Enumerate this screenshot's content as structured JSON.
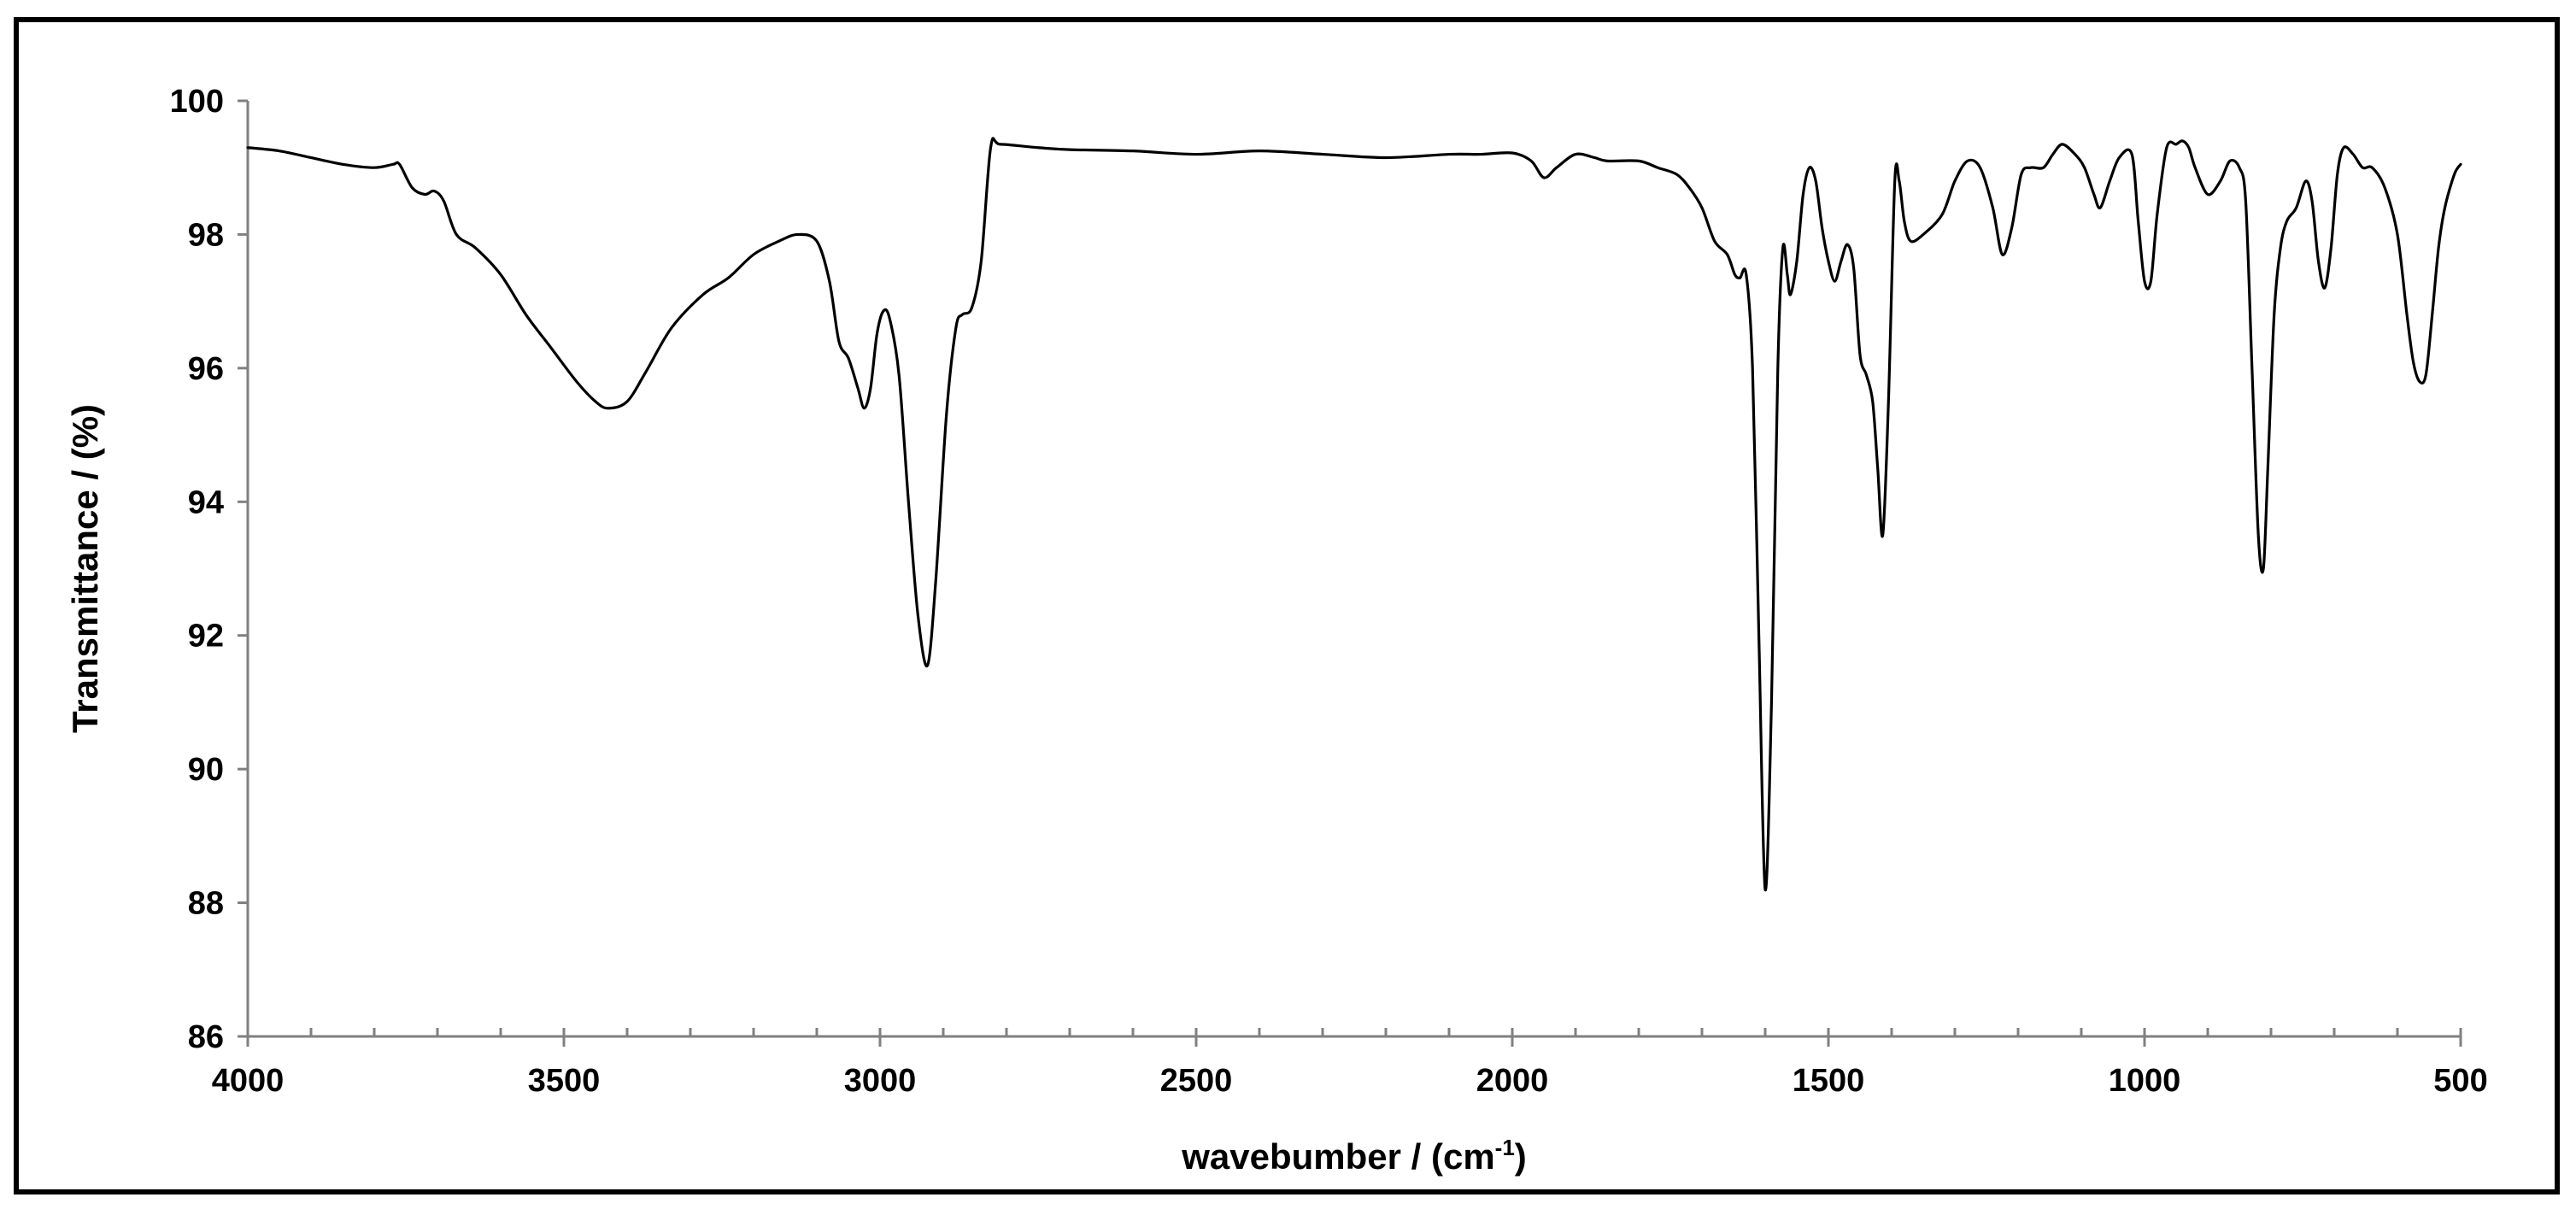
{
  "chart_data": {
    "type": "line",
    "title": "",
    "xlabel": "wavebumber / (cm",
    "xlabel_superscript": "-1",
    "xlabel_suffix": ")",
    "ylabel": "Transmittance / (%)",
    "xlim": [
      4000,
      500
    ],
    "ylim": [
      86,
      100
    ],
    "x_reversed": true,
    "x_ticks": [
      4000,
      3500,
      3000,
      2500,
      2000,
      1500,
      1000,
      500
    ],
    "x_tick_labels": [
      "4000",
      "3500",
      "3000",
      "2500",
      "2000",
      "1500",
      "1000",
      "500"
    ],
    "x_minor_step": 100,
    "y_ticks": [
      86,
      88,
      90,
      92,
      94,
      96,
      98,
      100
    ],
    "y_tick_labels": [
      "86",
      "88",
      "90",
      "92",
      "94",
      "96",
      "98",
      "100"
    ],
    "grid": false,
    "legend": "none",
    "line_color": "#000000",
    "axis_color": "#808080",
    "series": [
      {
        "points": [
          [
            4000,
            99.3
          ],
          [
            3950,
            99.25
          ],
          [
            3900,
            99.15
          ],
          [
            3850,
            99.05
          ],
          [
            3800,
            99.0
          ],
          [
            3770,
            99.05
          ],
          [
            3760,
            99.05
          ],
          [
            3740,
            98.7
          ],
          [
            3720,
            98.6
          ],
          [
            3705,
            98.65
          ],
          [
            3690,
            98.5
          ],
          [
            3670,
            98.0
          ],
          [
            3640,
            97.8
          ],
          [
            3600,
            97.4
          ],
          [
            3560,
            96.8
          ],
          [
            3520,
            96.3
          ],
          [
            3480,
            95.8
          ],
          [
            3450,
            95.5
          ],
          [
            3430,
            95.4
          ],
          [
            3400,
            95.5
          ],
          [
            3370,
            95.95
          ],
          [
            3330,
            96.6
          ],
          [
            3280,
            97.1
          ],
          [
            3240,
            97.35
          ],
          [
            3200,
            97.7
          ],
          [
            3160,
            97.9
          ],
          [
            3130,
            98.0
          ],
          [
            3100,
            97.9
          ],
          [
            3080,
            97.3
          ],
          [
            3065,
            96.4
          ],
          [
            3050,
            96.15
          ],
          [
            3035,
            95.7
          ],
          [
            3025,
            95.4
          ],
          [
            3015,
            95.7
          ],
          [
            3005,
            96.5
          ],
          [
            2995,
            96.85
          ],
          [
            2985,
            96.75
          ],
          [
            2970,
            95.9
          ],
          [
            2955,
            94.0
          ],
          [
            2940,
            92.3
          ],
          [
            2925,
            91.55
          ],
          [
            2912,
            92.8
          ],
          [
            2895,
            95.3
          ],
          [
            2880,
            96.6
          ],
          [
            2870,
            96.8
          ],
          [
            2855,
            96.9
          ],
          [
            2840,
            97.6
          ],
          [
            2825,
            99.3
          ],
          [
            2810,
            99.35
          ],
          [
            2750,
            99.3
          ],
          [
            2700,
            99.27
          ],
          [
            2600,
            99.25
          ],
          [
            2500,
            99.2
          ],
          [
            2400,
            99.25
          ],
          [
            2300,
            99.2
          ],
          [
            2200,
            99.15
          ],
          [
            2100,
            99.2
          ],
          [
            2050,
            99.2
          ],
          [
            2000,
            99.22
          ],
          [
            1970,
            99.1
          ],
          [
            1950,
            98.85
          ],
          [
            1930,
            99.0
          ],
          [
            1900,
            99.2
          ],
          [
            1870,
            99.15
          ],
          [
            1850,
            99.1
          ],
          [
            1800,
            99.1
          ],
          [
            1770,
            99.0
          ],
          [
            1740,
            98.9
          ],
          [
            1720,
            98.7
          ],
          [
            1700,
            98.4
          ],
          [
            1680,
            97.9
          ],
          [
            1660,
            97.7
          ],
          [
            1648,
            97.4
          ],
          [
            1640,
            97.35
          ],
          [
            1630,
            97.4
          ],
          [
            1620,
            96.0
          ],
          [
            1610,
            92.0
          ],
          [
            1600,
            88.2
          ],
          [
            1590,
            91.0
          ],
          [
            1580,
            96.0
          ],
          [
            1572,
            97.8
          ],
          [
            1565,
            97.4
          ],
          [
            1560,
            97.1
          ],
          [
            1550,
            97.6
          ],
          [
            1540,
            98.6
          ],
          [
            1530,
            99.0
          ],
          [
            1520,
            98.8
          ],
          [
            1510,
            98.1
          ],
          [
            1500,
            97.6
          ],
          [
            1490,
            97.3
          ],
          [
            1480,
            97.6
          ],
          [
            1470,
            97.85
          ],
          [
            1460,
            97.5
          ],
          [
            1450,
            96.2
          ],
          [
            1440,
            95.9
          ],
          [
            1430,
            95.5
          ],
          [
            1422,
            94.5
          ],
          [
            1414,
            93.5
          ],
          [
            1405,
            95.5
          ],
          [
            1395,
            98.8
          ],
          [
            1388,
            98.8
          ],
          [
            1380,
            98.2
          ],
          [
            1370,
            97.9
          ],
          [
            1350,
            98.0
          ],
          [
            1320,
            98.3
          ],
          [
            1300,
            98.8
          ],
          [
            1280,
            99.1
          ],
          [
            1260,
            99.0
          ],
          [
            1240,
            98.4
          ],
          [
            1225,
            97.7
          ],
          [
            1210,
            98.1
          ],
          [
            1195,
            98.9
          ],
          [
            1180,
            99.0
          ],
          [
            1160,
            99.0
          ],
          [
            1145,
            99.2
          ],
          [
            1130,
            99.35
          ],
          [
            1110,
            99.2
          ],
          [
            1095,
            99.0
          ],
          [
            1080,
            98.6
          ],
          [
            1070,
            98.4
          ],
          [
            1055,
            98.8
          ],
          [
            1040,
            99.15
          ],
          [
            1020,
            99.2
          ],
          [
            1010,
            98.2
          ],
          [
            1000,
            97.3
          ],
          [
            990,
            97.3
          ],
          [
            980,
            98.3
          ],
          [
            965,
            99.3
          ],
          [
            950,
            99.35
          ],
          [
            940,
            99.4
          ],
          [
            930,
            99.3
          ],
          [
            920,
            99.0
          ],
          [
            900,
            98.6
          ],
          [
            880,
            98.8
          ],
          [
            865,
            99.1
          ],
          [
            850,
            99.0
          ],
          [
            840,
            98.5
          ],
          [
            830,
            96.0
          ],
          [
            820,
            93.5
          ],
          [
            812,
            93.0
          ],
          [
            805,
            94.5
          ],
          [
            795,
            96.8
          ],
          [
            785,
            97.8
          ],
          [
            775,
            98.2
          ],
          [
            760,
            98.4
          ],
          [
            745,
            98.8
          ],
          [
            735,
            98.5
          ],
          [
            725,
            97.6
          ],
          [
            715,
            97.2
          ],
          [
            705,
            97.8
          ],
          [
            695,
            98.9
          ],
          [
            685,
            99.3
          ],
          [
            670,
            99.2
          ],
          [
            655,
            99.0
          ],
          [
            640,
            99.0
          ],
          [
            620,
            98.7
          ],
          [
            600,
            98.0
          ],
          [
            585,
            96.8
          ],
          [
            575,
            96.1
          ],
          [
            565,
            95.8
          ],
          [
            555,
            95.9
          ],
          [
            545,
            96.8
          ],
          [
            535,
            97.8
          ],
          [
            525,
            98.4
          ],
          [
            510,
            98.9
          ],
          [
            500,
            99.05
          ]
        ]
      }
    ]
  }
}
